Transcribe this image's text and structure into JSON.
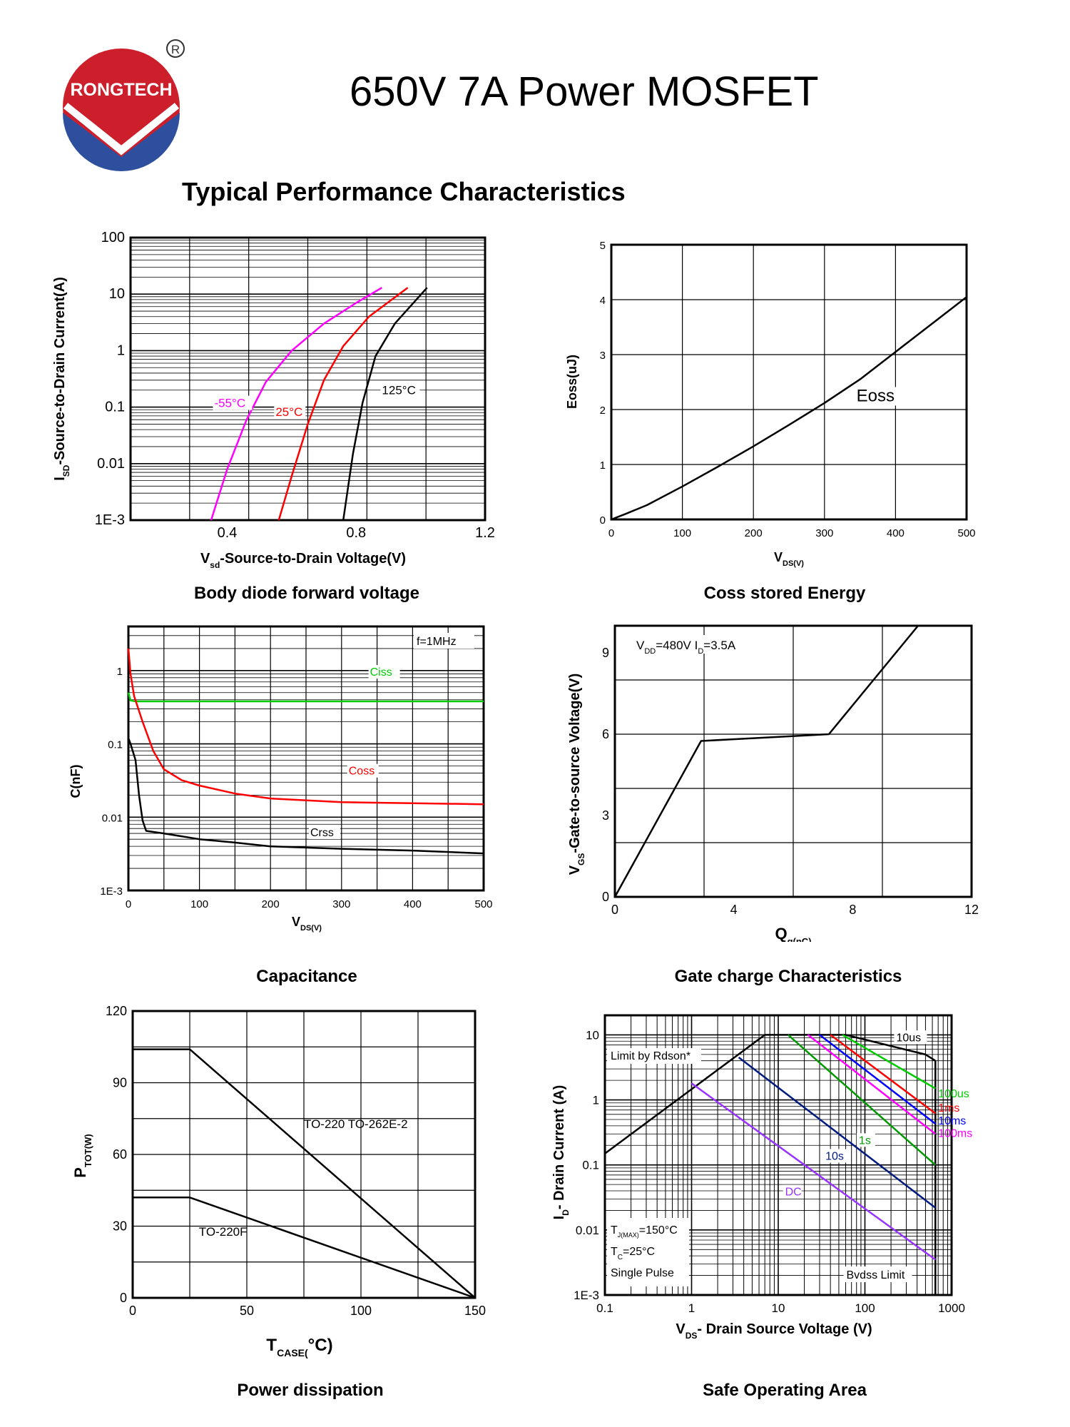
{
  "header": {
    "brand": "RONGTECH",
    "registered_mark": "R",
    "title": "650V 7A Power MOSFET",
    "section": "Typical Performance Characteristics"
  },
  "colors": {
    "magenta": "#ff00ff",
    "red": "#ff0000",
    "black": "#000000",
    "green": "#00cc00",
    "blue": "#0000ff",
    "purple": "#9933ff",
    "darkblue": "#001a80",
    "darkgreen": "#009900",
    "logo_red": "#cc1f2b",
    "logo_blue": "#2e4f9e"
  },
  "chart_data": [
    {
      "id": "body-diode",
      "type": "line",
      "title": "Body diode forward voltage",
      "ylabel": "I_SD-Source-to-Drain Current(A)",
      "xlabel": "V_sd-Source-to-Drain Voltage(V)",
      "xlim": [
        0.1,
        1.2
      ],
      "yscale": "log",
      "ylim": [
        0.001,
        100
      ],
      "xticks": [
        {
          "v": 0.4,
          "t": "0.4"
        },
        {
          "v": 0.8,
          "t": "0.8"
        },
        {
          "v": 1.2,
          "t": "1.2"
        }
      ],
      "yticks": [
        {
          "v": 100,
          "t": "100"
        },
        {
          "v": 10,
          "t": "10"
        },
        {
          "v": 1,
          "t": "1"
        },
        {
          "v": 0.1,
          "t": "0.1"
        },
        {
          "v": 0.01,
          "t": "0.01"
        },
        {
          "v": 0.001,
          "t": "1E-3"
        }
      ],
      "series": [
        {
          "name": "-55°C",
          "label": "-55°C",
          "color": "#ff00ff",
          "points": [
            [
              0.35,
              0.001
            ],
            [
              0.4,
              0.008
            ],
            [
              0.46,
              0.06
            ],
            [
              0.52,
              0.28
            ],
            [
              0.6,
              1.0
            ],
            [
              0.7,
              3.0
            ],
            [
              0.8,
              7.0
            ],
            [
              0.88,
              13
            ]
          ],
          "label_at": [
            0.36,
            0.1
          ]
        },
        {
          "name": "25°C",
          "label": "25°C",
          "color": "#ff0000",
          "points": [
            [
              0.56,
              0.001
            ],
            [
              0.6,
              0.006
            ],
            [
              0.65,
              0.05
            ],
            [
              0.7,
              0.3
            ],
            [
              0.76,
              1.2
            ],
            [
              0.84,
              4.0
            ],
            [
              0.96,
              13
            ]
          ],
          "label_at": [
            0.55,
            0.07
          ]
        },
        {
          "name": "125°C",
          "label": "125°C",
          "color": "#000000",
          "points": [
            [
              0.76,
              0.001
            ],
            [
              0.79,
              0.015
            ],
            [
              0.82,
              0.12
            ],
            [
              0.86,
              0.8
            ],
            [
              0.92,
              3.0
            ],
            [
              1.02,
              13
            ]
          ],
          "label_at": [
            0.88,
            0.17
          ]
        }
      ]
    },
    {
      "id": "eoss",
      "type": "line",
      "title": "Coss stored Energy",
      "ylabel": "Eoss(uJ)",
      "xlabel": "V_DS(V)",
      "xlim": [
        0,
        500
      ],
      "ylim": [
        0,
        5
      ],
      "xticks": [
        {
          "v": 0,
          "t": "0"
        },
        {
          "v": 100,
          "t": "100"
        },
        {
          "v": 200,
          "t": "200"
        },
        {
          "v": 300,
          "t": "300"
        },
        {
          "v": 400,
          "t": "400"
        },
        {
          "v": 500,
          "t": "500"
        }
      ],
      "yticks": [
        {
          "v": 0,
          "t": "0"
        },
        {
          "v": 1,
          "t": "1"
        },
        {
          "v": 2,
          "t": "2"
        },
        {
          "v": 3,
          "t": "3"
        },
        {
          "v": 4,
          "t": "4"
        },
        {
          "v": 5,
          "t": "5"
        }
      ],
      "series": [
        {
          "name": "Eoss",
          "label": "Eoss",
          "color": "#000000",
          "points": [
            [
              0,
              0
            ],
            [
              20,
              0.1
            ],
            [
              50,
              0.26
            ],
            [
              100,
              0.6
            ],
            [
              150,
              0.96
            ],
            [
              200,
              1.33
            ],
            [
              250,
              1.72
            ],
            [
              300,
              2.12
            ],
            [
              350,
              2.55
            ],
            [
              400,
              3.05
            ],
            [
              450,
              3.55
            ],
            [
              500,
              4.05
            ]
          ],
          "label_at": [
            345,
            2.15
          ]
        }
      ]
    },
    {
      "id": "capacitance",
      "type": "line",
      "title": "Capacitance",
      "ylabel": "C(nF)",
      "xlabel": "V_DS(V)",
      "annotation": "f=1MHz",
      "xlim": [
        0,
        500
      ],
      "yscale": "log",
      "ylim": [
        0.001,
        4
      ],
      "xticks": [
        {
          "v": 0,
          "t": "0"
        },
        {
          "v": 100,
          "t": "100"
        },
        {
          "v": 200,
          "t": "200"
        },
        {
          "v": 300,
          "t": "300"
        },
        {
          "v": 400,
          "t": "400"
        },
        {
          "v": 500,
          "t": "500"
        }
      ],
      "yticks": [
        {
          "v": 1,
          "t": "1"
        },
        {
          "v": 0.1,
          "t": "0.1"
        },
        {
          "v": 0.01,
          "t": "0.01"
        },
        {
          "v": 0.001,
          "t": "1E-3"
        }
      ],
      "series": [
        {
          "name": "Ciss",
          "label": "Ciss",
          "color": "#00cc00",
          "points": [
            [
              0,
              0.5
            ],
            [
              3,
              0.39
            ],
            [
              10,
              0.38
            ],
            [
              500,
              0.38
            ]
          ],
          "label_at": [
            340,
            0.85
          ]
        },
        {
          "name": "Coss",
          "label": "Coss",
          "color": "#ff0000",
          "points": [
            [
              0,
              2
            ],
            [
              3,
              0.9
            ],
            [
              8,
              0.45
            ],
            [
              20,
              0.2
            ],
            [
              35,
              0.08
            ],
            [
              50,
              0.045
            ],
            [
              75,
              0.032
            ],
            [
              100,
              0.027
            ],
            [
              150,
              0.021
            ],
            [
              200,
              0.018
            ],
            [
              300,
              0.016
            ],
            [
              400,
              0.0155
            ],
            [
              500,
              0.015
            ]
          ],
          "label_at": [
            310,
            0.038
          ]
        },
        {
          "name": "Crss",
          "label": "Crss",
          "color": "#000000",
          "points": [
            [
              0,
              0.12
            ],
            [
              3,
              0.1
            ],
            [
              10,
              0.06
            ],
            [
              15,
              0.02
            ],
            [
              20,
              0.009
            ],
            [
              25,
              0.0065
            ],
            [
              50,
              0.006
            ],
            [
              100,
              0.005
            ],
            [
              150,
              0.0045
            ],
            [
              200,
              0.004
            ],
            [
              300,
              0.0037
            ],
            [
              400,
              0.0035
            ],
            [
              500,
              0.0032
            ]
          ],
          "label_at": [
            256,
            0.0055
          ]
        }
      ]
    },
    {
      "id": "gate-charge",
      "type": "line",
      "title": "Gate charge Characteristics",
      "ylabel": "V_GS-Gate-to-source Voltage(V)",
      "xlabel": "Q_g(nC)",
      "annotation": "V_DD=480V I_D=3.5A",
      "xlim": [
        0,
        12
      ],
      "ylim": [
        0,
        10
      ],
      "xticks": [
        {
          "v": 0,
          "t": "0"
        },
        {
          "v": 4,
          "t": "4"
        },
        {
          "v": 8,
          "t": "8"
        },
        {
          "v": 12,
          "t": "12"
        }
      ],
      "yticks": [
        {
          "v": 0,
          "t": "0"
        },
        {
          "v": 3,
          "t": "3"
        },
        {
          "v": 6,
          "t": "6"
        },
        {
          "v": 9,
          "t": "9"
        }
      ],
      "series": [
        {
          "name": "VGS",
          "label": "",
          "color": "#000000",
          "points": [
            [
              0,
              0
            ],
            [
              2.9,
              5.75
            ],
            [
              7.2,
              6.0
            ],
            [
              10.2,
              10
            ]
          ]
        }
      ]
    },
    {
      "id": "power-dissipation",
      "type": "line",
      "title": "Power dissipation",
      "ylabel": "P_TOT(W)",
      "xlabel": "T_CASE(°C)",
      "xlim": [
        0,
        150
      ],
      "ylim": [
        0,
        120
      ],
      "xticks": [
        {
          "v": 0,
          "t": "0"
        },
        {
          "v": 50,
          "t": "50"
        },
        {
          "v": 100,
          "t": "100"
        },
        {
          "v": 150,
          "t": "150"
        }
      ],
      "yticks": [
        {
          "v": 0,
          "t": "0"
        },
        {
          "v": 30,
          "t": "30"
        },
        {
          "v": 60,
          "t": "60"
        },
        {
          "v": 90,
          "t": "90"
        },
        {
          "v": 120,
          "t": "120"
        }
      ],
      "series": [
        {
          "name": "TO-220 TO-262E-2",
          "label": "TO-220 TO-262E-2",
          "color": "#000000",
          "points": [
            [
              0,
              104
            ],
            [
              25,
              104
            ],
            [
              150,
              0
            ]
          ],
          "label_at": [
            75,
            71
          ]
        },
        {
          "name": "TO-220F",
          "label": "TO-220F",
          "color": "#000000",
          "points": [
            [
              0,
              42
            ],
            [
              25,
              42
            ],
            [
              150,
              0
            ]
          ],
          "label_at": [
            29,
            26
          ]
        }
      ]
    },
    {
      "id": "soa",
      "type": "line",
      "title": "Safe Operating Area",
      "ylabel": "I_D- Drain Current (A)",
      "xlabel": "V_DS- Drain Source Voltage (V)",
      "xscale": "log",
      "yscale": "log",
      "xlim": [
        0.1,
        1000
      ],
      "ylim": [
        0.001,
        20
      ],
      "xticks": [
        {
          "v": 0.1,
          "t": "0.1"
        },
        {
          "v": 1,
          "t": "1"
        },
        {
          "v": 10,
          "t": "10"
        },
        {
          "v": 100,
          "t": "100"
        },
        {
          "v": 1000,
          "t": "1000"
        }
      ],
      "yticks": [
        {
          "v": 10,
          "t": "10"
        },
        {
          "v": 1,
          "t": "1"
        },
        {
          "v": 0.1,
          "t": "0.1"
        },
        {
          "v": 0.01,
          "t": "0.01"
        },
        {
          "v": 0.001,
          "t": "1E-3"
        }
      ],
      "annotations": {
        "limit": "Limit by Rdson*",
        "tj": "T_J(MAX)=150°C",
        "tc": "T_C=25°C",
        "pulse": "Single Pulse",
        "bvdss": "Bvdss Limit"
      },
      "series": [
        {
          "name": "Rdson",
          "label": "",
          "color": "#000000",
          "points": [
            [
              0.1,
              0.15
            ],
            [
              7,
              10
            ],
            [
              60,
              10
            ],
            [
              500,
              5
            ],
            [
              650,
              4
            ]
          ]
        },
        {
          "name": "10us",
          "label": "10us",
          "color": "#00cc00",
          "points": [
            [
              55,
              10
            ],
            [
              650,
              1.5
            ]
          ],
          "label_at": [
            230,
            8
          ],
          "side": "top"
        },
        {
          "name": "100us",
          "label": "100us",
          "color": "#00cc00",
          "points": [
            [
              55,
              10
            ],
            [
              650,
              1.5
            ]
          ],
          "label_at": [
            700,
            1.1
          ],
          "side": "right"
        },
        {
          "name": "1ms",
          "label": "1ms",
          "color": "#ff0000",
          "points": [
            [
              40,
              10
            ],
            [
              650,
              0.62
            ]
          ],
          "label_at": [
            700,
            0.66
          ],
          "side": "right"
        },
        {
          "name": "10ms",
          "label": "10ms",
          "color": "#0000ff",
          "points": [
            [
              30,
              10
            ],
            [
              650,
              0.43
            ]
          ],
          "label_at": [
            700,
            0.42
          ],
          "side": "right"
        },
        {
          "name": "100ms",
          "label": "100ms",
          "color": "#ff00ff",
          "points": [
            [
              22,
              10
            ],
            [
              650,
              0.3
            ]
          ],
          "label_at": [
            700,
            0.27
          ],
          "side": "right"
        },
        {
          "name": "1s",
          "label": "1s",
          "color": "#009900",
          "points": [
            [
              13,
              10
            ],
            [
              650,
              0.1
            ]
          ],
          "label_at": [
            85,
            0.21
          ],
          "side": "inline"
        },
        {
          "name": "10s",
          "label": "10s",
          "color": "#001a80",
          "points": [
            [
              3.5,
              4.5
            ],
            [
              650,
              0.022
            ]
          ],
          "label_at": [
            35,
            0.12
          ],
          "side": "inline"
        },
        {
          "name": "DC",
          "label": "DC",
          "color": "#9933ff",
          "points": [
            [
              1,
              1.8
            ],
            [
              650,
              0.0035
            ]
          ],
          "label_at": [
            12,
            0.034
          ],
          "side": "inline"
        }
      ]
    }
  ]
}
